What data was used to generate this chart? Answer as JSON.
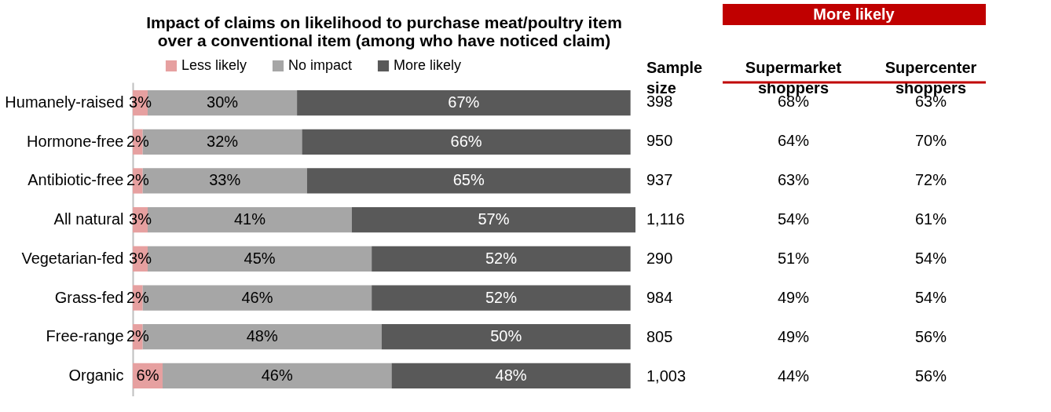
{
  "chart_data": [
    {
      "type": "bar",
      "orientation": "horizontal",
      "stacked": true,
      "title": "Impact of claims on likelihood to purchase meat/poultry item over a conventional item (among who have noticed claim)",
      "legend": "top",
      "tick_labels": "y",
      "xlim": [
        0,
        101
      ],
      "categories": [
        "Humanely-raised",
        "Hormone-free",
        "Antibiotic-free",
        "All natural",
        "Vegetarian-fed",
        "Grass-fed",
        "Free-range",
        "Organic"
      ],
      "series": [
        {
          "name": "Less likely",
          "color": "#e6a0a0",
          "values": [
            3,
            2,
            2,
            3,
            3,
            2,
            2,
            6
          ],
          "value_labels": [
            "3%",
            "2%",
            "2%",
            "3%",
            "3%",
            "2%",
            "2%",
            "6%"
          ]
        },
        {
          "name": "No impact",
          "color": "#a6a6a6",
          "values": [
            30,
            32,
            33,
            41,
            45,
            46,
            48,
            46
          ],
          "value_labels": [
            "30%",
            "32%",
            "33%",
            "41%",
            "45%",
            "46%",
            "48%",
            "46%"
          ]
        },
        {
          "name": "More likely",
          "color": "#595959",
          "values": [
            67,
            66,
            65,
            57,
            52,
            52,
            50,
            48
          ],
          "value_labels": [
            "67%",
            "66%",
            "65%",
            "57%",
            "52%",
            "52%",
            "50%",
            "48%"
          ]
        }
      ]
    },
    {
      "type": "other",
      "title": "More likely",
      "categories": [
        "Sample size",
        "Supermarket shoppers",
        "Supercenter shoppers"
      ],
      "cell_labels": [
        [
          "398",
          "68%",
          "63%"
        ],
        [
          "950",
          "64%",
          "70%"
        ],
        [
          "937",
          "63%",
          "72%"
        ],
        [
          "1,116",
          "54%",
          "61%"
        ],
        [
          "290",
          "51%",
          "54%"
        ],
        [
          "984",
          "49%",
          "54%"
        ],
        [
          "805",
          "49%",
          "56%"
        ],
        [
          "1,003",
          "44%",
          "56%"
        ]
      ]
    }
  ]
}
